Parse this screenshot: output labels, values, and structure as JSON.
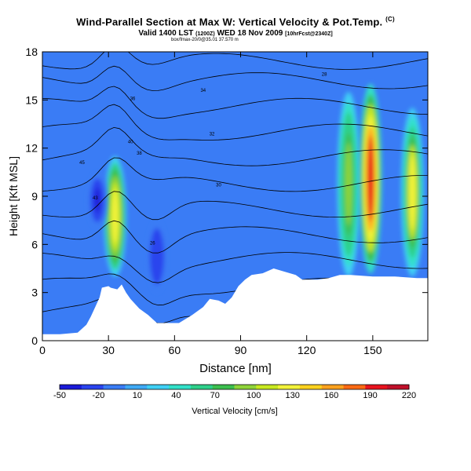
{
  "title": {
    "main": "Wind-Parallel Section at Max W: Vertical Velocity & Pot.Temp.",
    "mark": "(C)",
    "valid": "Valid 1400 LST",
    "valid_small": "(1200Z)",
    "valid_date": "WED 18 Nov 2009",
    "valid_run": "[10hrFcst@2340Z]",
    "line3": "box/fmax-20/0@35.01 37.570 m"
  },
  "chart_data": {
    "type": "heatmap",
    "xlabel": "Distance [nm]",
    "ylabel": "Height [Kft MSL]",
    "xlim": [
      0,
      175
    ],
    "ylim": [
      0,
      18
    ],
    "x_ticks": [
      0,
      30,
      60,
      90,
      120,
      150
    ],
    "y_ticks": [
      0,
      3,
      6,
      9,
      12,
      15,
      18
    ],
    "colorbar": {
      "label": "Vertical Velocity [cm/s]",
      "tick_labels": [
        "-50",
        "-20",
        "10",
        "40",
        "70",
        "100",
        "130",
        "160",
        "190",
        "220"
      ],
      "tick_values": [
        -50,
        -20,
        10,
        40,
        70,
        100,
        130,
        160,
        190,
        220
      ],
      "colors": [
        "#1a1ad8",
        "#2a44ee",
        "#3a7cf5",
        "#3fa9f5",
        "#3fd0f5",
        "#32e0c8",
        "#2ed08a",
        "#3cbf4e",
        "#8fd43a",
        "#c8e820",
        "#f2f23a",
        "#ffd21e",
        "#ffa21e",
        "#ff6a14",
        "#e8141e",
        "#c0102a"
      ]
    },
    "background_value": 0,
    "features": [
      {
        "kind": "updraft",
        "x": 33,
        "y_range": [
          4.0,
          11.5
        ],
        "peak": 130
      },
      {
        "kind": "downdraft",
        "x": 25,
        "y_range": [
          7.0,
          10.5
        ],
        "peak": -35
      },
      {
        "kind": "downdraft",
        "x": 52,
        "y_range": [
          3.0,
          7.5
        ],
        "peak": -30
      },
      {
        "kind": "updraft",
        "x": 139,
        "y_range": [
          4.0,
          15.5
        ],
        "peak": 95
      },
      {
        "kind": "updraft",
        "x": 149,
        "y_range": [
          4.2,
          16.0
        ],
        "peak": 190
      },
      {
        "kind": "updraft",
        "x": 168,
        "y_range": [
          4.0,
          14.5
        ],
        "peak": 120
      }
    ],
    "terrain": [
      [
        0,
        0.4
      ],
      [
        8,
        0.4
      ],
      [
        16,
        0.5
      ],
      [
        20,
        1.0
      ],
      [
        22,
        1.5
      ],
      [
        24,
        2.1
      ],
      [
        26,
        2.7
      ],
      [
        27,
        3.3
      ],
      [
        30,
        3.4
      ],
      [
        31,
        3.3
      ],
      [
        34,
        3.2
      ],
      [
        36,
        3.5
      ],
      [
        38,
        3.0
      ],
      [
        40,
        2.6
      ],
      [
        44,
        2.0
      ],
      [
        48,
        1.6
      ],
      [
        52,
        1.1
      ],
      [
        62,
        1.1
      ],
      [
        68,
        1.6
      ],
      [
        73,
        2.1
      ],
      [
        76,
        2.6
      ],
      [
        80,
        2.5
      ],
      [
        83,
        2.3
      ],
      [
        86,
        2.7
      ],
      [
        89,
        3.4
      ],
      [
        92,
        3.8
      ],
      [
        95,
        4.1
      ],
      [
        100,
        4.2
      ],
      [
        105,
        4.5
      ],
      [
        110,
        4.3
      ],
      [
        115,
        4.1
      ],
      [
        118,
        3.8
      ],
      [
        125,
        3.8
      ],
      [
        130,
        3.9
      ],
      [
        135,
        4.1
      ],
      [
        140,
        4.1
      ],
      [
        150,
        4.0
      ],
      [
        160,
        4.0
      ],
      [
        170,
        3.9
      ],
      [
        175,
        3.9
      ]
    ],
    "contour_labels": [
      "45",
      "43",
      "40",
      "38",
      "36",
      "34",
      "32",
      "30",
      "28",
      "26"
    ]
  }
}
